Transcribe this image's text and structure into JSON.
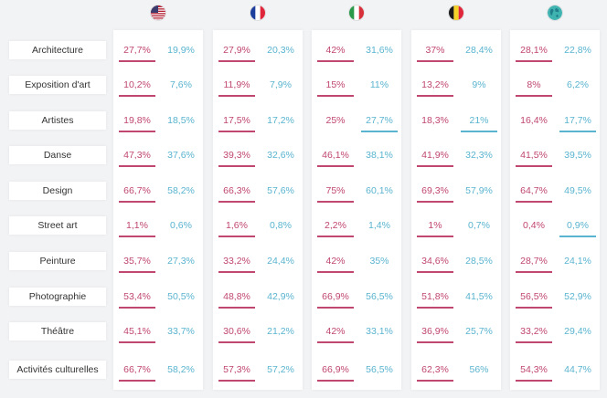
{
  "colors": {
    "series_a": "#c0476f",
    "series_b": "#5ab4cf"
  },
  "countries": [
    {
      "icon": "usa-flag-icon"
    },
    {
      "icon": "france-flag-icon"
    },
    {
      "icon": "italy-flag-icon"
    },
    {
      "icon": "belgium-flag-icon"
    },
    {
      "icon": "globe-icon"
    }
  ],
  "chart_data": {
    "type": "table",
    "categories": [
      "Architecture",
      "Exposition d'art",
      "Artistes",
      "Danse",
      "Design",
      "Street art",
      "Peinture",
      "Photographie",
      "Théâtre",
      "Activités culturelles"
    ],
    "groups": [
      {
        "a": [
          "27,7%",
          "10,2%",
          "19,8%",
          "47,3%",
          "66,7%",
          "1,1%",
          "35,7%",
          "53,4%",
          "45,1%",
          "66,7%"
        ],
        "b": [
          "19,9%",
          "7,6%",
          "18,5%",
          "37,6%",
          "58,2%",
          "0,6%",
          "27,3%",
          "50,5%",
          "33,7%",
          "58,2%"
        ]
      },
      {
        "a": [
          "27,9%",
          "11,9%",
          "17,5%",
          "39,3%",
          "66,3%",
          "1,6%",
          "33,2%",
          "48,8%",
          "30,6%",
          "57,3%"
        ],
        "b": [
          "20,3%",
          "7,9%",
          "17,2%",
          "32,6%",
          "57,6%",
          "0,8%",
          "24,4%",
          "42,9%",
          "21,2%",
          "57,2%"
        ]
      },
      {
        "a": [
          "42%",
          "15%",
          "25%",
          "46,1%",
          "75%",
          "2,2%",
          "42%",
          "66,9%",
          "42%",
          "66,9%"
        ],
        "b": [
          "31,6%",
          "11%",
          "27,7%",
          "38,1%",
          "60,1%",
          "1,4%",
          "35%",
          "56,5%",
          "33,1%",
          "56,5%"
        ]
      },
      {
        "a": [
          "37%",
          "13,2%",
          "18,3%",
          "41,9%",
          "69,3%",
          "1%",
          "34,6%",
          "51,8%",
          "36,9%",
          "62,3%"
        ],
        "b": [
          "28,4%",
          "9%",
          "21%",
          "32,3%",
          "57,9%",
          "0,7%",
          "28,5%",
          "41,5%",
          "25,7%",
          "56%"
        ]
      },
      {
        "a": [
          "28,1%",
          "8%",
          "16,4%",
          "41,5%",
          "64,7%",
          "0,4%",
          "28,7%",
          "56,5%",
          "33,2%",
          "54,3%"
        ],
        "b": [
          "22,8%",
          "6,2%",
          "17,7%",
          "39,5%",
          "49,5%",
          "0,9%",
          "24,1%",
          "52,9%",
          "29,4%",
          "44,7%"
        ]
      }
    ],
    "higher_series": [
      [
        "a",
        "a",
        "a",
        "a",
        "a",
        "a",
        "a",
        "a",
        "a",
        "a"
      ],
      [
        "a",
        "a",
        "a",
        "a",
        "a",
        "a",
        "a",
        "a",
        "a",
        "a"
      ],
      [
        "a",
        "a",
        "b",
        "a",
        "a",
        "a",
        "a",
        "a",
        "a",
        "a"
      ],
      [
        "a",
        "a",
        "b",
        "a",
        "a",
        "a",
        "a",
        "a",
        "a",
        "a"
      ],
      [
        "a",
        "a",
        "b",
        "a",
        "a",
        "b",
        "a",
        "a",
        "a",
        "a"
      ]
    ]
  }
}
